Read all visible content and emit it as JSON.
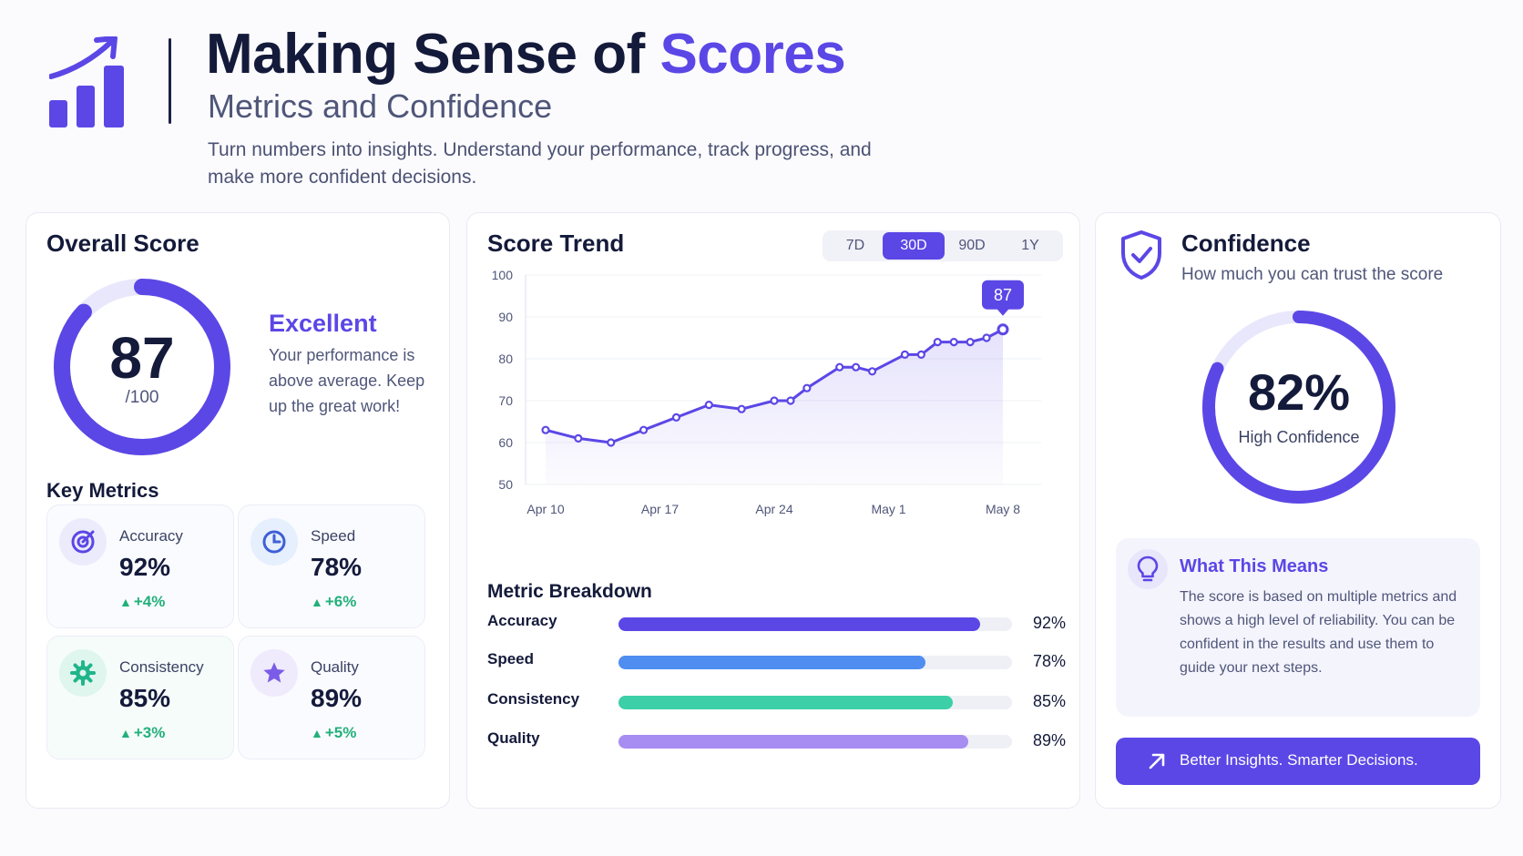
{
  "header": {
    "title_main": "Making Sense of ",
    "title_accent": "Scores",
    "subtitle": "Metrics and Confidence",
    "tagline": "Turn numbers into insights. Understand your performance, track progress, and make more confident decisions.",
    "logo_icon": "chart-growth-icon"
  },
  "colors": {
    "accent": "#5b47e6",
    "accent_light": "#e6e3fb",
    "speed": "#4f8df1",
    "consistency": "#3ccfa8",
    "quality": "#a78cf2",
    "positive": "#22b07a"
  },
  "overall": {
    "title": "Overall Score",
    "score": "87",
    "out_of": "/100",
    "score_fraction": 0.87,
    "rating": "Excellent",
    "description": "Your performance is above average. Keep up the great work!",
    "key_metrics_title": "Key Metrics",
    "metrics": [
      {
        "label": "Accuracy",
        "value": "92%",
        "change": "+4%",
        "icon": "target-icon"
      },
      {
        "label": "Speed",
        "value": "78%",
        "change": "+6%",
        "icon": "clock-icon"
      },
      {
        "label": "Consistency",
        "value": "85%",
        "change": "+3%",
        "icon": "gear-icon"
      },
      {
        "label": "Quality",
        "value": "89%",
        "change": "+5%",
        "icon": "star-icon"
      }
    ]
  },
  "trend": {
    "title": "Score Trend",
    "ranges": [
      "7D",
      "30D",
      "90D",
      "1Y"
    ],
    "active_range": "30D",
    "callout": "87",
    "breakdown_title": "Metric Breakdown",
    "breakdown": [
      {
        "label": "Accuracy",
        "value": "92%",
        "fraction": 0.92,
        "color": "#5b47e6"
      },
      {
        "label": "Speed",
        "value": "78%",
        "fraction": 0.78,
        "color": "#4f8df1"
      },
      {
        "label": "Consistency",
        "value": "85%",
        "fraction": 0.85,
        "color": "#3ccfa8"
      },
      {
        "label": "Quality",
        "value": "89%",
        "fraction": 0.89,
        "color": "#a78cf2"
      }
    ]
  },
  "chart_data": {
    "type": "line",
    "title": "Score Trend",
    "xlabel": "",
    "ylabel": "",
    "x_tick_labels": [
      "Apr 10",
      "Apr 17",
      "Apr 24",
      "May 1",
      "May 8"
    ],
    "ylim": [
      50,
      100
    ],
    "y_ticks": [
      50,
      60,
      70,
      80,
      90,
      100
    ],
    "grid": true,
    "x": [
      "Apr 10",
      "Apr 11",
      "Apr 12",
      "Apr 13",
      "Apr 14",
      "Apr 15",
      "Apr 16",
      "Apr 17",
      "Apr 18",
      "Apr 19",
      "Apr 20",
      "Apr 21",
      "Apr 22",
      "Apr 23",
      "Apr 24",
      "Apr 25",
      "Apr 26",
      "Apr 27",
      "Apr 28",
      "Apr 29",
      "Apr 30",
      "May 1",
      "May 2",
      "May 3",
      "May 4",
      "May 5",
      "May 6",
      "May 7",
      "May 8"
    ],
    "series": [
      {
        "values": [
          63,
          null,
          61,
          null,
          60,
          null,
          63,
          null,
          66,
          null,
          69,
          null,
          68,
          null,
          70,
          70,
          73,
          null,
          78,
          78,
          77,
          null,
          81,
          81,
          84,
          84,
          84,
          85,
          87
        ]
      }
    ],
    "highlighted_point": {
      "x": "May 8",
      "y": 87
    }
  },
  "confidence": {
    "title": "Confidence",
    "subtitle": "How much you can trust the score",
    "value": "82%",
    "fraction": 0.82,
    "label": "High Confidence",
    "info_title": "What This Means",
    "info_text": "The score is based on multiple metrics and shows a high level of reliability. You can be confident in the results and use them to guide your next steps.",
    "cta": "Better Insights. Smarter Decisions."
  }
}
